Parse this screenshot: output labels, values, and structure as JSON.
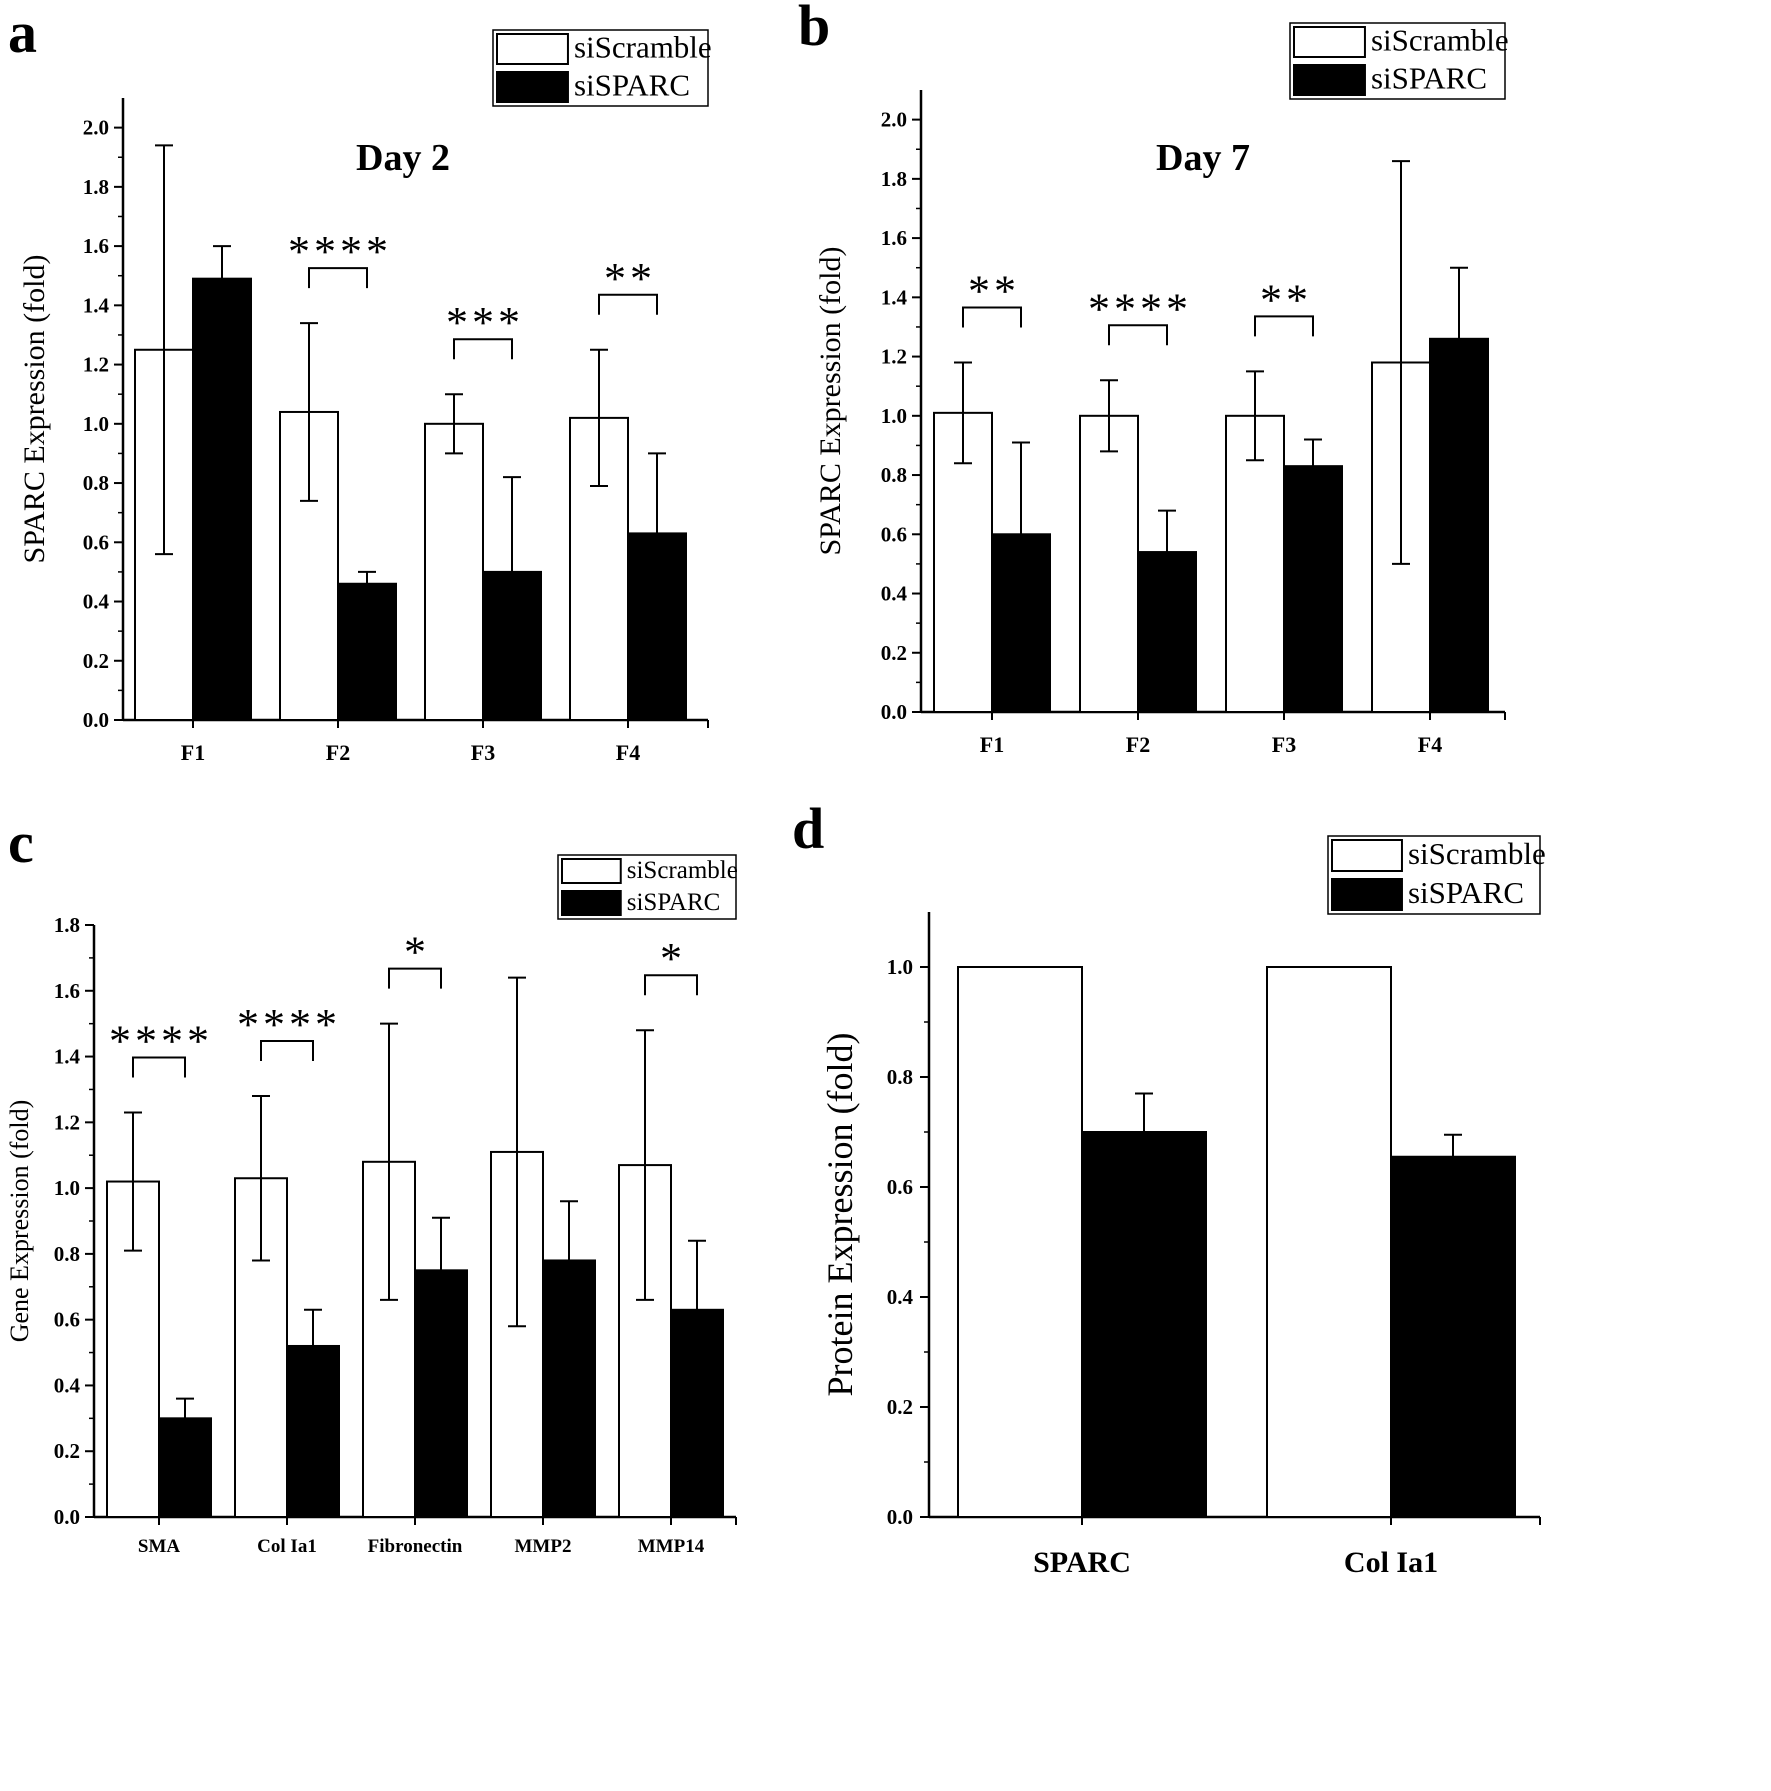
{
  "figure": {
    "legend": {
      "scramble": "siScramble",
      "sparc": "siSPARC"
    },
    "colors": {
      "scramble_fill": "#ffffff",
      "sparc_fill": "#000000",
      "stroke": "#000000"
    }
  },
  "chart_data": [
    {
      "panel": "a",
      "type": "bar",
      "title": "Day 2",
      "ylabel": "SPARC Expression (fold)",
      "xlabel": "",
      "ylim": [
        0,
        2.1
      ],
      "yticks": [
        "0.0",
        "0.2",
        "0.4",
        "0.6",
        "0.8",
        "1.0",
        "1.2",
        "1.4",
        "1.6",
        "1.8",
        "2.0"
      ],
      "categories": [
        "F1",
        "F2",
        "F3",
        "F4"
      ],
      "series": [
        {
          "name": "siScramble",
          "values": [
            1.25,
            1.04,
            1.0,
            1.02
          ],
          "errors": [
            0.69,
            0.3,
            0.1,
            0.23
          ]
        },
        {
          "name": "siSPARC",
          "values": [
            1.49,
            0.46,
            0.5,
            0.63
          ],
          "errors": [
            0.11,
            0.04,
            0.32,
            0.27
          ]
        }
      ],
      "significance": [
        "",
        "****",
        "***",
        "**"
      ],
      "legend_position": "top-right"
    },
    {
      "panel": "b",
      "type": "bar",
      "title": "Day 7",
      "ylabel": "SPARC Expression (fold)",
      "xlabel": "",
      "ylim": [
        0,
        2.1
      ],
      "yticks": [
        "0.0",
        "0.2",
        "0.4",
        "0.6",
        "0.8",
        "1.0",
        "1.2",
        "1.4",
        "1.6",
        "1.8",
        "2.0"
      ],
      "categories": [
        "F1",
        "F2",
        "F3",
        "F4"
      ],
      "series": [
        {
          "name": "siScramble",
          "values": [
            1.01,
            1.0,
            1.0,
            1.18
          ],
          "errors": [
            0.17,
            0.12,
            0.15,
            0.68
          ]
        },
        {
          "name": "siSPARC",
          "values": [
            0.6,
            0.54,
            0.83,
            1.26
          ],
          "errors": [
            0.31,
            0.14,
            0.09,
            0.24
          ]
        }
      ],
      "significance": [
        "**",
        "****",
        "**",
        ""
      ],
      "legend_position": "top-right"
    },
    {
      "panel": "c",
      "type": "bar",
      "title": "",
      "ylabel": "Gene Expression (fold)",
      "xlabel": "",
      "ylim": [
        0,
        1.8
      ],
      "yticks": [
        "0.0",
        "0.2",
        "0.4",
        "0.6",
        "0.8",
        "1.0",
        "1.2",
        "1.4",
        "1.6",
        "1.8"
      ],
      "categories": [
        "SMA",
        "Col Ia1",
        "Fibronectin",
        "MMP2",
        "MMP14"
      ],
      "series": [
        {
          "name": "siScramble",
          "values": [
            1.02,
            1.03,
            1.08,
            1.11,
            1.07
          ],
          "errors": [
            0.21,
            0.25,
            0.42,
            0.53,
            0.41
          ]
        },
        {
          "name": "siSPARC",
          "values": [
            0.3,
            0.52,
            0.75,
            0.78,
            0.63
          ],
          "errors": [
            0.06,
            0.11,
            0.16,
            0.18,
            0.21
          ]
        }
      ],
      "significance": [
        "****",
        "****",
        "*",
        "",
        "*"
      ],
      "legend_position": "top-right"
    },
    {
      "panel": "d",
      "type": "bar",
      "title": "",
      "ylabel": "Protein Expression (fold)",
      "xlabel": "",
      "ylim": [
        0,
        1.1
      ],
      "yticks": [
        "0.0",
        "0.2",
        "0.4",
        "0.6",
        "0.8",
        "1.0"
      ],
      "categories": [
        "SPARC",
        "Col Ia1"
      ],
      "series": [
        {
          "name": "siScramble",
          "values": [
            1.0,
            1.0
          ],
          "errors": [
            0,
            0
          ]
        },
        {
          "name": "siSPARC",
          "values": [
            0.7,
            0.655
          ],
          "errors": [
            0.07,
            0.04
          ]
        }
      ],
      "significance": [
        "",
        ""
      ],
      "legend_position": "top-right"
    }
  ]
}
